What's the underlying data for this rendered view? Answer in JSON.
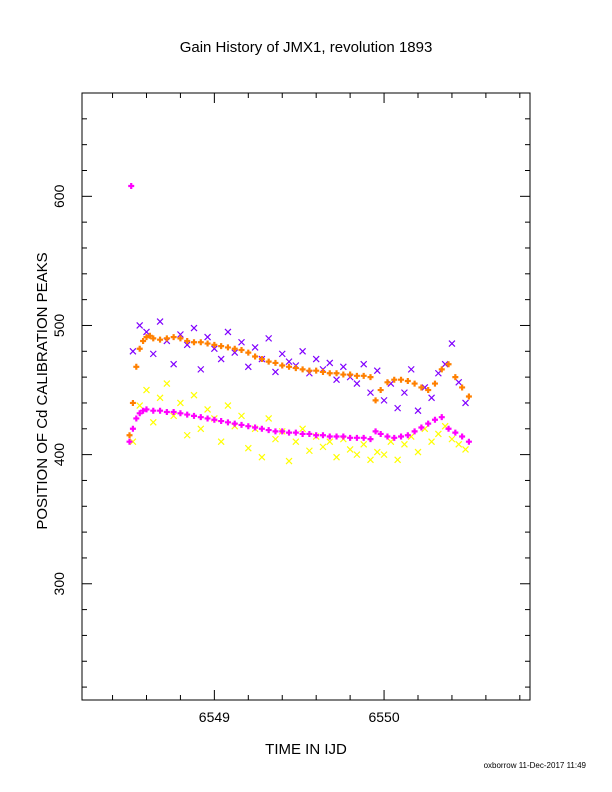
{
  "chart_data": {
    "type": "scatter",
    "title": "Gain History of JMX1, revolution 1893",
    "xlabel": "TIME IN IJD",
    "ylabel": "POSITION OF Cd CALIBRATION PEAKS",
    "xlim": [
      6548.22,
      6550.86
    ],
    "ylim": [
      210,
      680
    ],
    "x_ticks": [
      "6549",
      "6550"
    ],
    "y_ticks": [
      "300",
      "400",
      "500",
      "600"
    ],
    "grid": false,
    "legend": "none",
    "series": [
      {
        "color": "#8000ff",
        "marker": "x",
        "x": [
          6548.52,
          6548.56,
          6548.6,
          6548.64,
          6548.68,
          6548.72,
          6548.76,
          6548.8,
          6548.84,
          6548.88,
          6548.92,
          6548.96,
          6549.0,
          6549.04,
          6549.08,
          6549.12,
          6549.16,
          6549.2,
          6549.24,
          6549.28,
          6549.32,
          6549.36,
          6549.4,
          6549.44,
          6549.48,
          6549.52,
          6549.56,
          6549.6,
          6549.64,
          6549.68,
          6549.72,
          6549.76,
          6549.8,
          6549.84,
          6549.88,
          6549.92,
          6549.96,
          6550.0,
          6550.04,
          6550.08,
          6550.12,
          6550.16,
          6550.2,
          6550.24,
          6550.28,
          6550.32,
          6550.36,
          6550.4,
          6550.44,
          6550.48
        ],
        "y": [
          480,
          500,
          495,
          478,
          503,
          488,
          470,
          493,
          485,
          498,
          466,
          491,
          482,
          474,
          495,
          479,
          487,
          468,
          483,
          474,
          490,
          464,
          478,
          472,
          469,
          480,
          463,
          474,
          466,
          471,
          458,
          468,
          460,
          455,
          470,
          448,
          465,
          442,
          455,
          436,
          448,
          466,
          434,
          452,
          444,
          463,
          470,
          486,
          456,
          440
        ]
      },
      {
        "color": "#ffff00",
        "marker": "x",
        "x": [
          6548.52,
          6548.56,
          6548.6,
          6548.64,
          6548.68,
          6548.72,
          6548.76,
          6548.8,
          6548.84,
          6548.88,
          6548.92,
          6548.96,
          6549.0,
          6549.04,
          6549.08,
          6549.12,
          6549.16,
          6549.2,
          6549.24,
          6549.28,
          6549.32,
          6549.36,
          6549.4,
          6549.44,
          6549.48,
          6549.52,
          6549.56,
          6549.6,
          6549.64,
          6549.68,
          6549.72,
          6549.76,
          6549.8,
          6549.84,
          6549.88,
          6549.92,
          6549.96,
          6550.0,
          6550.04,
          6550.08,
          6550.12,
          6550.16,
          6550.2,
          6550.24,
          6550.28,
          6550.32,
          6550.36,
          6550.4,
          6550.44,
          6550.48
        ],
        "y": [
          410,
          438,
          450,
          425,
          444,
          455,
          430,
          440,
          415,
          446,
          420,
          435,
          428,
          410,
          438,
          422,
          430,
          405,
          420,
          398,
          428,
          412,
          418,
          395,
          410,
          420,
          403,
          414,
          406,
          410,
          398,
          412,
          404,
          400,
          408,
          396,
          402,
          400,
          410,
          396,
          408,
          414,
          402,
          420,
          410,
          416,
          422,
          412,
          408,
          404
        ]
      },
      {
        "color": "#ff8000",
        "marker": "+",
        "x": [
          6548.5,
          6548.52,
          6548.54,
          6548.56,
          6548.58,
          6548.6,
          6548.62,
          6548.64,
          6548.68,
          6548.72,
          6548.76,
          6548.8,
          6548.84,
          6548.88,
          6548.92,
          6548.96,
          6549.0,
          6549.04,
          6549.08,
          6549.12,
          6549.16,
          6549.2,
          6549.24,
          6549.28,
          6549.32,
          6549.36,
          6549.4,
          6549.44,
          6549.48,
          6549.52,
          6549.56,
          6549.6,
          6549.64,
          6549.68,
          6549.72,
          6549.76,
          6549.8,
          6549.84,
          6549.88,
          6549.92,
          6549.95,
          6549.98,
          6550.02,
          6550.06,
          6550.1,
          6550.14,
          6550.18,
          6550.22,
          6550.26,
          6550.3,
          6550.34,
          6550.38,
          6550.42,
          6550.46,
          6550.5
        ],
        "y": [
          415,
          440,
          468,
          482,
          488,
          491,
          492,
          490,
          489,
          490,
          491,
          490,
          488,
          487,
          487,
          486,
          485,
          484,
          483,
          482,
          481,
          479,
          476,
          474,
          472,
          471,
          469,
          468,
          467,
          466,
          465,
          465,
          464,
          463,
          463,
          462,
          462,
          461,
          461,
          460,
          442,
          450,
          456,
          458,
          458,
          457,
          455,
          452,
          450,
          455,
          466,
          470,
          460,
          452,
          445
        ]
      },
      {
        "color": "#ff00ff",
        "marker": "+",
        "x": [
          6548.5,
          6548.52,
          6548.54,
          6548.56,
          6548.58,
          6548.6,
          6548.64,
          6548.68,
          6548.72,
          6548.76,
          6548.8,
          6548.84,
          6548.88,
          6548.92,
          6548.96,
          6549.0,
          6549.04,
          6549.08,
          6549.12,
          6549.16,
          6549.2,
          6549.24,
          6549.28,
          6549.32,
          6549.36,
          6549.4,
          6549.44,
          6549.48,
          6549.52,
          6549.56,
          6549.6,
          6549.64,
          6549.68,
          6549.72,
          6549.76,
          6549.8,
          6549.84,
          6549.88,
          6549.92,
          6549.95,
          6549.98,
          6550.02,
          6550.06,
          6550.1,
          6550.14,
          6550.18,
          6550.22,
          6550.26,
          6550.3,
          6550.34,
          6550.38,
          6550.42,
          6550.46,
          6550.5,
          6548.51
        ],
        "y": [
          410,
          420,
          428,
          432,
          434,
          435,
          434,
          434,
          433,
          433,
          432,
          431,
          430,
          429,
          428,
          427,
          426,
          425,
          424,
          423,
          422,
          421,
          420,
          419,
          418,
          418,
          417,
          417,
          416,
          416,
          415,
          415,
          414,
          414,
          414,
          413,
          413,
          413,
          412,
          418,
          416,
          414,
          413,
          414,
          415,
          418,
          421,
          424,
          427,
          429,
          420,
          417,
          414,
          410,
          608
        ]
      }
    ]
  },
  "footer": {
    "stamp": "oxborrow 11-Dec-2017 11:49"
  }
}
